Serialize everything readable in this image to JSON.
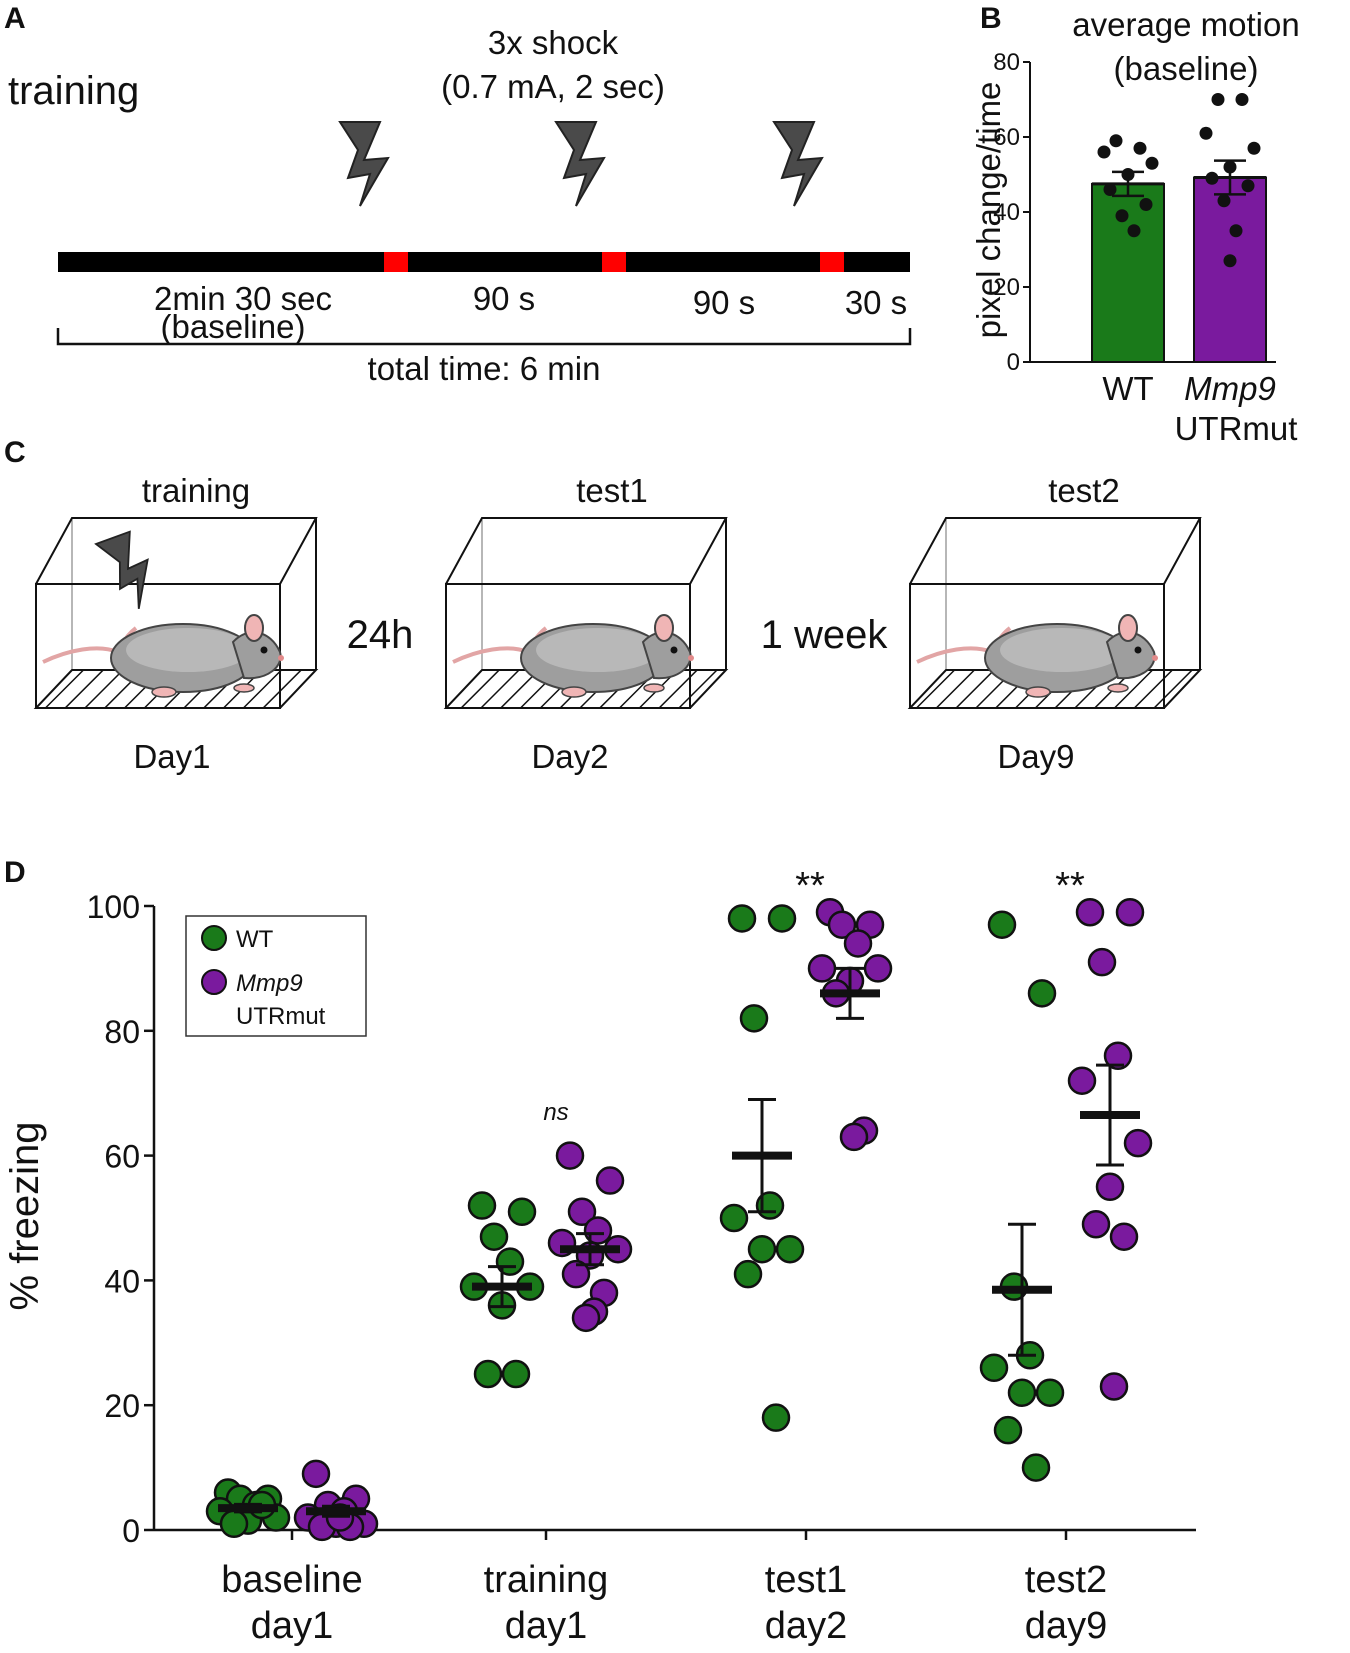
{
  "panels": {
    "a": "A",
    "b": "B",
    "c": "C",
    "d": "D"
  },
  "panel_a": {
    "title": "training",
    "shock_line1": "3x shock",
    "shock_line2": "(0.7 mA, 2 sec)",
    "segments": [
      {
        "label": "2min 30 sec",
        "sublabel": "(baseline)"
      },
      {
        "label": "90 s"
      },
      {
        "label": "90 s"
      },
      {
        "label": "30 s"
      }
    ],
    "total": "total time: 6 min",
    "colors": {
      "timeline": "#000000",
      "shock_marker": "#ff0000",
      "bolt": "#4a4a4a"
    }
  },
  "panel_c": {
    "stages": [
      {
        "title": "training",
        "day": "Day1",
        "shock": true
      },
      {
        "title": "test1",
        "day": "Day2",
        "shock": false
      },
      {
        "title": "test2",
        "day": "Day9",
        "shock": false
      }
    ],
    "gaps": [
      "24h",
      "1 week"
    ]
  },
  "chart_data": [
    {
      "id": "B",
      "type": "bar",
      "title": "average motion",
      "subtitle": "(baseline)",
      "ylabel": "pixel change/time",
      "ylim": [
        0,
        80
      ],
      "yticks": [
        0,
        20,
        40,
        60,
        80
      ],
      "categories": [
        "WT",
        "Mmp9 UTRmut"
      ],
      "category_labels": [
        {
          "line1": "WT",
          "line2": ""
        },
        {
          "line1": "Mmp9",
          "line2": "UTRmut"
        }
      ],
      "values": [
        47.5,
        49.2
      ],
      "sem": [
        3.2,
        4.5
      ],
      "colors": [
        "#1a7a1a",
        "#7a1a9e"
      ],
      "points": [
        [
          59,
          57,
          56,
          53,
          50,
          46,
          42,
          39,
          35
        ],
        [
          70,
          70,
          61,
          57,
          52,
          49,
          47,
          43,
          35,
          27
        ]
      ]
    },
    {
      "id": "D",
      "type": "scatter",
      "ylabel": "% freezing",
      "ylim": [
        0,
        100
      ],
      "yticks": [
        0,
        20,
        40,
        60,
        80,
        100
      ],
      "categories": [
        {
          "line1": "baseline",
          "line2": "day1"
        },
        {
          "line1": "training",
          "line2": "day1"
        },
        {
          "line1": "test1",
          "line2": "day2"
        },
        {
          "line1": "test2",
          "line2": "day9"
        }
      ],
      "annotations": [
        "",
        "ns",
        "**",
        "**"
      ],
      "legend": {
        "placement": "top-left",
        "entries": [
          {
            "line1": "WT",
            "line2": "",
            "color": "#1a7a1a"
          },
          {
            "line1": "Mmp9",
            "line2": "UTRmut",
            "color": "#7a1a9e"
          }
        ]
      },
      "series": [
        {
          "name": "WT",
          "color": "#1a7a1a",
          "groups": [
            {
              "mean": 3.5,
              "sem": 0.6,
              "values": [
                6,
                5,
                5,
                4,
                3,
                2,
                1.5,
                1,
                4
              ]
            },
            {
              "mean": 39,
              "sem": 3.2,
              "values": [
                52,
                51,
                47,
                43,
                39,
                39,
                36,
                25,
                25
              ]
            },
            {
              "mean": 60,
              "sem": 9,
              "values": [
                98,
                98,
                82,
                52,
                50,
                45,
                45,
                41,
                18
              ]
            },
            {
              "mean": 38.5,
              "sem": 10.5,
              "values": [
                97,
                86,
                39,
                28,
                26,
                22,
                22,
                16,
                10
              ]
            }
          ]
        },
        {
          "name": "Mmp9 UTRmut",
          "color": "#7a1a9e",
          "groups": [
            {
              "mean": 3,
              "sem": 0.8,
              "values": [
                9,
                5,
                4,
                3,
                2,
                1,
                1,
                0.5,
                0.5,
                2
              ]
            },
            {
              "mean": 45,
              "sem": 2.5,
              "values": [
                60,
                56,
                51,
                48,
                46,
                45,
                44,
                41,
                38,
                35,
                34
              ]
            },
            {
              "mean": 86,
              "sem": 4,
              "values": [
                99,
                97,
                97,
                94,
                90,
                90,
                88,
                86,
                64,
                63
              ]
            },
            {
              "mean": 66.5,
              "sem": 8,
              "values": [
                99,
                99,
                91,
                76,
                72,
                62,
                55,
                49,
                47,
                23
              ]
            }
          ]
        }
      ]
    }
  ]
}
